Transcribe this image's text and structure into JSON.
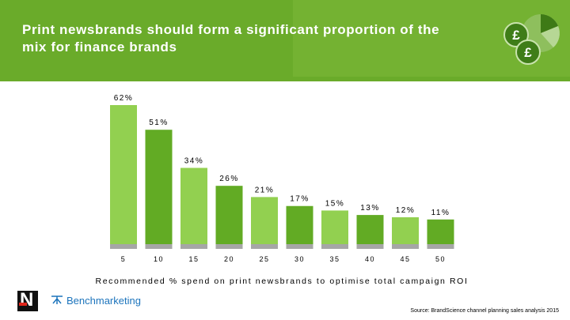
{
  "header": {
    "title": "Print newsbrands should form a significant proportion of the mix for finance brands",
    "coin_icon_1": "pound-coin-icon",
    "coin_icon_2": "pound-coin-icon",
    "pie_icon": "pie-chart-icon",
    "background_color": "#6aab2a"
  },
  "chart_data": {
    "type": "bar",
    "title": "",
    "xlabel": "Recommended % spend on print newsbrands to optimise total campaign ROI",
    "ylabel": "",
    "categories": [
      "5",
      "10",
      "15",
      "20",
      "25",
      "30",
      "35",
      "40",
      "45",
      "50"
    ],
    "values": [
      62,
      51,
      34,
      26,
      21,
      17,
      15,
      13,
      12,
      11
    ],
    "data_labels": [
      "62%",
      "51%",
      "34%",
      "26%",
      "21%",
      "17%",
      "15%",
      "13%",
      "12%",
      "11%"
    ],
    "ylim": [
      0,
      62
    ],
    "grid": false,
    "bar_colors": [
      "#92d050",
      "#62ab24",
      "#92d050",
      "#62ab24",
      "#92d050",
      "#62ab24",
      "#92d050",
      "#62ab24",
      "#92d050",
      "#62ab24"
    ],
    "baseline_color": "#a6a6a6"
  },
  "footer": {
    "logo_icon": "newsworks-n-logo-icon",
    "brand_icon": "benchmarketing-logo-icon",
    "brand_name": "Benchmarketing",
    "source": "Source: BrandScience channel planning sales analysis 2015"
  }
}
